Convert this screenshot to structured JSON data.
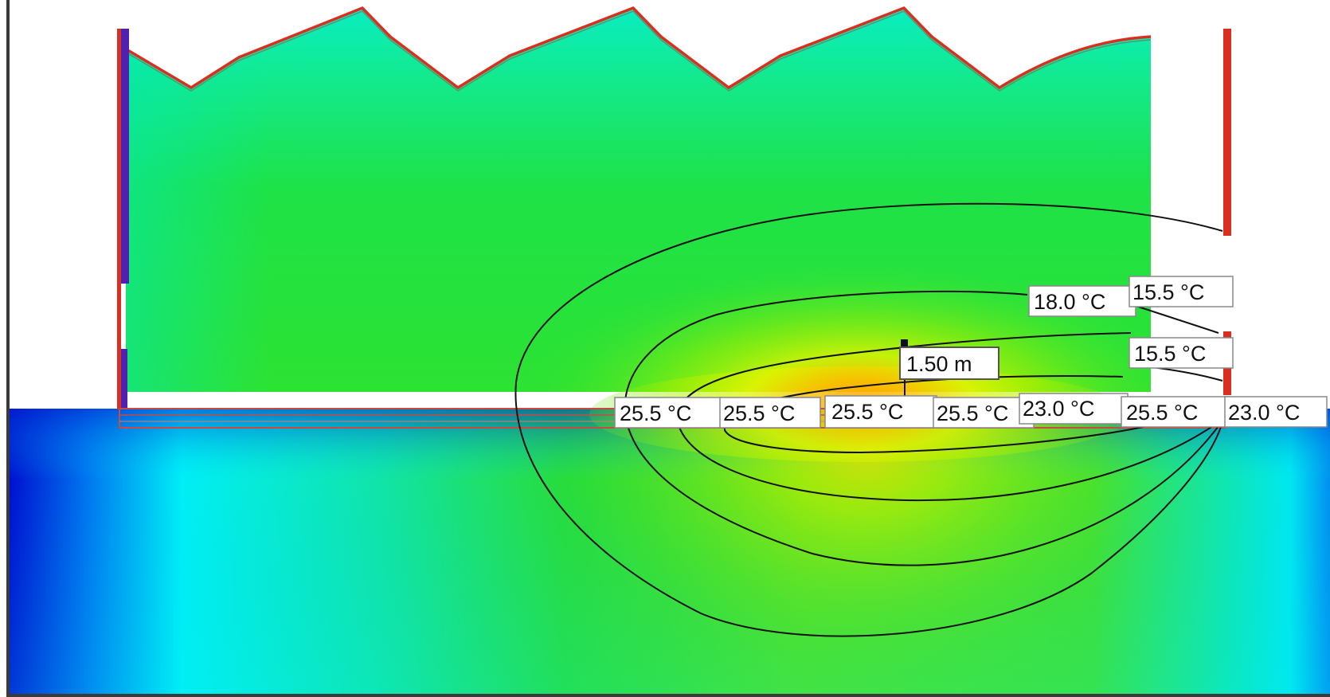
{
  "view": "temperature-distribution-cross-section",
  "colors": {
    "ground_cold": "#0018d8",
    "ground_cyan": "#00f0f4",
    "air_cyan": "#06f0ce",
    "air_green": "#20e23a",
    "warm_yellow": "#d8f800",
    "hot_orange": "#f5a000",
    "wall_outline": "#d83020",
    "wall_inner": "#5020b0",
    "isotherm_line": "#101010",
    "label_bg": "#ffffff",
    "label_border": "#888888",
    "frame": "#3a3a3a"
  },
  "isotherm_labels": [
    {
      "id": "label-18-0-upper",
      "text": "18.0 °C"
    },
    {
      "id": "label-15-5-upper",
      "text": "15.5 °C"
    },
    {
      "id": "label-15-5-mid",
      "text": "15.5 °C"
    },
    {
      "id": "label-25-5-a",
      "text": "25.5 °C"
    },
    {
      "id": "label-25-5-b",
      "text": "25.5 °C"
    },
    {
      "id": "label-25-5-c",
      "text": "25.5 °C"
    },
    {
      "id": "label-25-5-d",
      "text": "25.5 °C"
    },
    {
      "id": "label-23-0-a",
      "text": "23.0 °C"
    },
    {
      "id": "label-25-5-e",
      "text": "25.5 °C"
    },
    {
      "id": "label-23-0-b",
      "text": "23.0 °C"
    }
  ],
  "dimension": {
    "text": "1.50 m"
  }
}
